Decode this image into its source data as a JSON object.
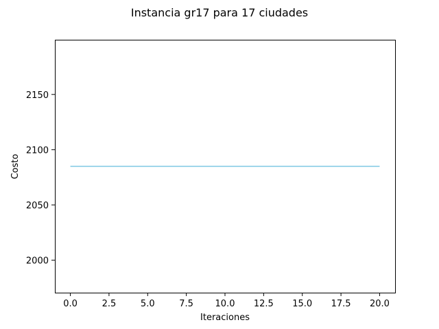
{
  "chart_data": {
    "type": "line",
    "title": "Instancia gr17 para 17 ciudades",
    "xlabel": "Iteraciones",
    "ylabel": "Costo",
    "xlim": [
      -1.0,
      21.0
    ],
    "ylim": [
      1970.6,
      2199.5
    ],
    "xticks": [
      0.0,
      2.5,
      5.0,
      7.5,
      10.0,
      12.5,
      15.0,
      17.5,
      20.0
    ],
    "xtick_labels": [
      "0.0",
      "2.5",
      "5.0",
      "7.5",
      "10.0",
      "12.5",
      "15.0",
      "17.5",
      "20.0"
    ],
    "yticks": [
      2000,
      2050,
      2100,
      2150
    ],
    "ytick_labels": [
      "2000",
      "2050",
      "2100",
      "2150"
    ],
    "grid": false,
    "series": [
      {
        "color": "#7ec8e3",
        "x": [
          0,
          1,
          2,
          3,
          4,
          5,
          6,
          7,
          8,
          9,
          10,
          11,
          12,
          13,
          14,
          15,
          16,
          17,
          18,
          19,
          20
        ],
        "y": [
          2085,
          2085,
          2085,
          2085,
          2085,
          2085,
          2085,
          2085,
          2085,
          2085,
          2085,
          2085,
          2085,
          2085,
          2085,
          2085,
          2085,
          2085,
          2085,
          2085,
          2085
        ]
      }
    ]
  }
}
